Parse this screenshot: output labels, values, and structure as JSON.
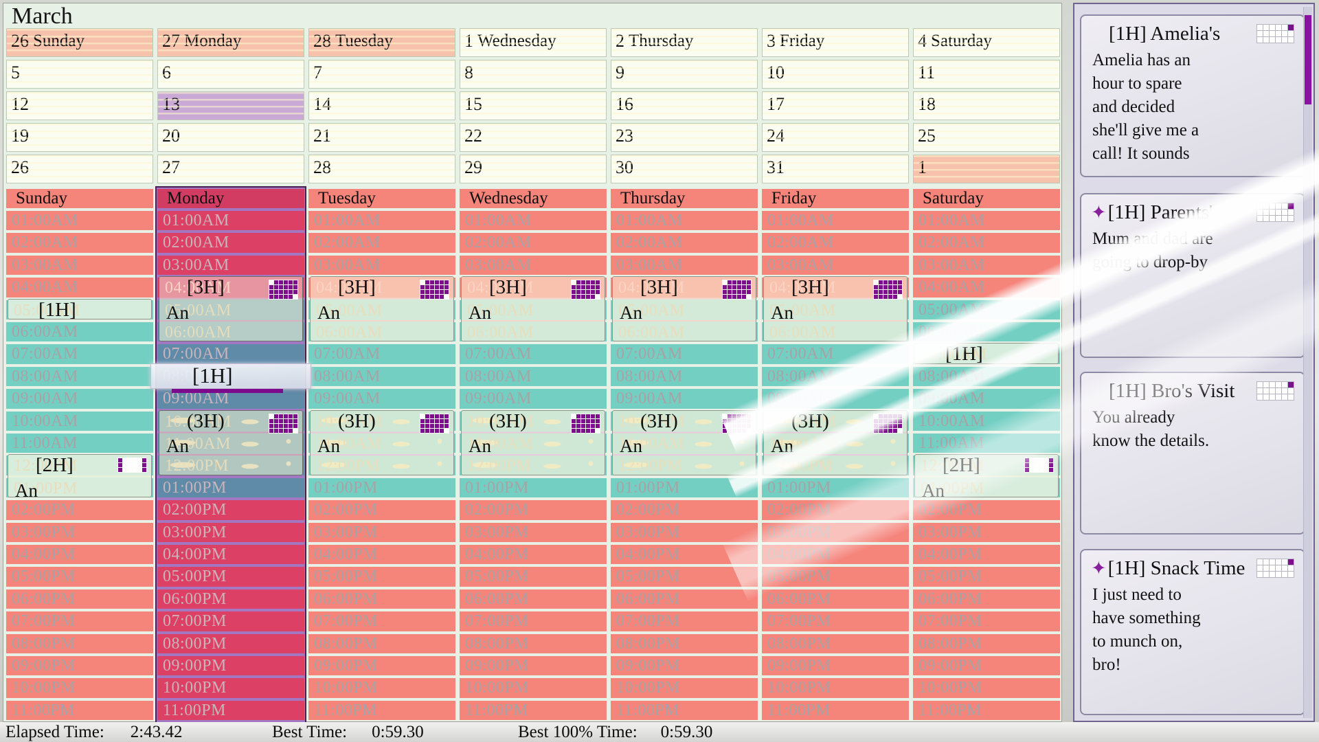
{
  "title": "March",
  "colors": {
    "salmon": "#f5847b",
    "teal": "#74cfc3",
    "crimson": "#dd4065",
    "slate": "#5f8aa8",
    "purple_stripe": "#a278c2",
    "event_pink": "#f8c2ae",
    "icon_purple": "#7d0f8d",
    "month_highlight": "#f6c2ac",
    "month_selected": "#c9aad6",
    "sidebar_bg": "#dddbe7",
    "panel_bg": "#e8f1e5"
  },
  "month": {
    "weeks": [
      [
        {
          "num": "26",
          "name": "Sunday",
          "hl": "salmon"
        },
        {
          "num": "27",
          "name": "Monday",
          "hl": "salmon"
        },
        {
          "num": "28",
          "name": "Tuesday",
          "hl": "salmon"
        },
        {
          "num": "1",
          "name": "Wednesday"
        },
        {
          "num": "2",
          "name": "Thursday"
        },
        {
          "num": "3",
          "name": "Friday"
        },
        {
          "num": "4",
          "name": "Saturday"
        }
      ],
      [
        {
          "num": "5"
        },
        {
          "num": "6"
        },
        {
          "num": "7"
        },
        {
          "num": "8"
        },
        {
          "num": "9"
        },
        {
          "num": "10"
        },
        {
          "num": "11"
        }
      ],
      [
        {
          "num": "12"
        },
        {
          "num": "13",
          "hl": "purple"
        },
        {
          "num": "14"
        },
        {
          "num": "15"
        },
        {
          "num": "16"
        },
        {
          "num": "17"
        },
        {
          "num": "18"
        }
      ],
      [
        {
          "num": "19"
        },
        {
          "num": "20"
        },
        {
          "num": "21"
        },
        {
          "num": "22"
        },
        {
          "num": "23"
        },
        {
          "num": "24"
        },
        {
          "num": "25"
        }
      ],
      [
        {
          "num": "26"
        },
        {
          "num": "27"
        },
        {
          "num": "28"
        },
        {
          "num": "29"
        },
        {
          "num": "30"
        },
        {
          "num": "31"
        },
        {
          "num": "1",
          "hl": "salmon"
        }
      ]
    ]
  },
  "week": {
    "times": [
      "01:00AM",
      "02:00AM",
      "03:00AM",
      "04:00AM",
      "05:00AM",
      "06:00AM",
      "07:00AM",
      "08:00AM",
      "09:00AM",
      "10:00AM",
      "11:00AM",
      "12:00PM",
      "01:00PM",
      "02:00PM",
      "03:00PM",
      "04:00PM",
      "05:00PM",
      "06:00PM",
      "07:00PM",
      "08:00PM",
      "09:00PM",
      "10:00PM",
      "11:00PM"
    ],
    "days": [
      {
        "name": "Sunday",
        "selected": false,
        "events": [
          {
            "label": "[1H]",
            "sub": null,
            "start": 4,
            "span": 1,
            "style": "e1h",
            "icon": null
          },
          {
            "label": "[2H]",
            "sub": "An",
            "start": 11,
            "span": 2,
            "style": "e2h",
            "icon": "grid2h"
          }
        ]
      },
      {
        "name": "Monday",
        "selected": true,
        "events": [
          {
            "label": "[3H]",
            "sub": "An",
            "start": 3,
            "span": 3,
            "style": "e3h",
            "icon": "grid3h"
          },
          {
            "label": "(3H)",
            "sub": "An",
            "start": 9,
            "span": 3,
            "style": "p3h",
            "icon": "grid3h"
          }
        ]
      },
      {
        "name": "Tuesday",
        "selected": false,
        "events": [
          {
            "label": "[3H]",
            "sub": "An",
            "start": 3,
            "span": 3,
            "style": "e3h",
            "icon": "grid3h"
          },
          {
            "label": "(3H)",
            "sub": "An",
            "start": 9,
            "span": 3,
            "style": "p3h",
            "icon": "grid3h"
          }
        ]
      },
      {
        "name": "Wednesday",
        "selected": false,
        "events": [
          {
            "label": "[3H]",
            "sub": "An",
            "start": 3,
            "span": 3,
            "style": "e3h",
            "icon": "grid3h"
          },
          {
            "label": "(3H)",
            "sub": "An",
            "start": 9,
            "span": 3,
            "style": "p3h",
            "icon": "grid3h"
          }
        ]
      },
      {
        "name": "Thursday",
        "selected": false,
        "events": [
          {
            "label": "[3H]",
            "sub": "An",
            "start": 3,
            "span": 3,
            "style": "e3h",
            "icon": "grid3h"
          },
          {
            "label": "(3H)",
            "sub": "An",
            "start": 9,
            "span": 3,
            "style": "p3h",
            "icon": "grid3h"
          }
        ]
      },
      {
        "name": "Friday",
        "selected": false,
        "events": [
          {
            "label": "[3H]",
            "sub": "An",
            "start": 3,
            "span": 3,
            "style": "e3h",
            "icon": "grid3h"
          },
          {
            "label": "(3H)",
            "sub": "An",
            "start": 9,
            "span": 3,
            "style": "p3h",
            "icon": "grid3h"
          }
        ]
      },
      {
        "name": "Saturday",
        "selected": false,
        "events": [
          {
            "label": "[1H]",
            "sub": null,
            "start": 6,
            "span": 1,
            "style": "e1h",
            "icon": null
          },
          {
            "label": "[2H]",
            "sub": "An",
            "start": 11,
            "span": 2,
            "style": "e2h",
            "icon": "grid2h"
          }
        ]
      }
    ],
    "drag": {
      "label": "[1H]",
      "day_index": 1,
      "slot_index": 7
    }
  },
  "icons": {
    "grid3h": [
      "WPPPPP",
      "PPPPPP",
      "PPPPPP",
      "PPPPPW"
    ],
    "grid2h": [
      "PWWWWP",
      "PWWWWP",
      "PWWWWP"
    ],
    "card_icon": [
      "WWWWWP",
      "WWWWWW",
      "WWWWWW"
    ]
  },
  "sidebar": {
    "cards": [
      {
        "star": false,
        "title": "[1H] Amelia's",
        "lines": [
          "Amelia has an",
          "hour to spare",
          "and decided",
          "she'll give me a",
          "call! It sounds"
        ]
      },
      {
        "star": true,
        "title": "[1H] Parents'",
        "lines": [
          "Mum and dad are",
          "going to drop-by"
        ]
      },
      {
        "star": false,
        "title": "[1H] Bro's Visit",
        "lines": [
          "You already",
          "know the details."
        ]
      },
      {
        "star": true,
        "title": "[1H] Snack Time",
        "lines": [
          "I just need to",
          "have something",
          "to munch on,",
          "bro!"
        ]
      }
    ]
  },
  "status_bar": {
    "elapsed_label": "Elapsed Time:",
    "elapsed_value": "2:43.42",
    "best_label": "Best Time:",
    "best_value": "0:59.30",
    "best100_label": "Best 100% Time:",
    "best100_value": "0:59.30"
  }
}
